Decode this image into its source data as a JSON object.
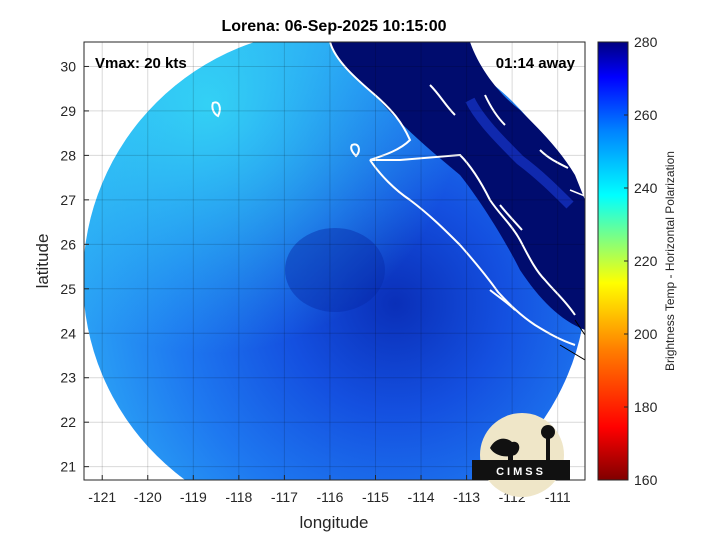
{
  "chart_data": {
    "type": "heatmap",
    "title": "Lorena: 06-Sep-2025 10:15:00",
    "xlabel": "longitude",
    "ylabel": "latitude",
    "xlim": [
      -121.4,
      -110.4
    ],
    "ylim": [
      20.7,
      30.55
    ],
    "xticks": [
      -121,
      -120,
      -119,
      -118,
      -117,
      -116,
      -115,
      -114,
      -113,
      -112,
      -111
    ],
    "yticks": [
      21,
      22,
      23,
      24,
      25,
      26,
      27,
      28,
      29,
      30
    ],
    "xtick_labels": [
      "-121",
      "-120",
      "-119",
      "-118",
      "-117",
      "-116",
      "-115",
      "-114",
      "-113",
      "-112",
      "-111"
    ],
    "ytick_labels": [
      "21",
      "22",
      "23",
      "24",
      "25",
      "26",
      "27",
      "28",
      "29",
      "30"
    ],
    "grid": true,
    "annotations": {
      "vmax": "Vmax: 20 kts",
      "time_away": "01:14 away"
    },
    "storm_center": {
      "lon": -115.8,
      "lat": 25.4
    },
    "colorbar": {
      "label": "Brightness Temp - Horizontal Polarization",
      "range": [
        160,
        280
      ],
      "ticks": [
        160,
        180,
        200,
        220,
        240,
        260,
        280
      ],
      "tick_labels": [
        "160",
        "180",
        "200",
        "220",
        "240",
        "260",
        "280"
      ],
      "colors": [
        "#800000",
        "#ff0000",
        "#ff8000",
        "#ffff00",
        "#80ff80",
        "#00ffff",
        "#0080ff",
        "#0000ff",
        "#000080"
      ]
    },
    "logo_text": "CIMSS"
  }
}
